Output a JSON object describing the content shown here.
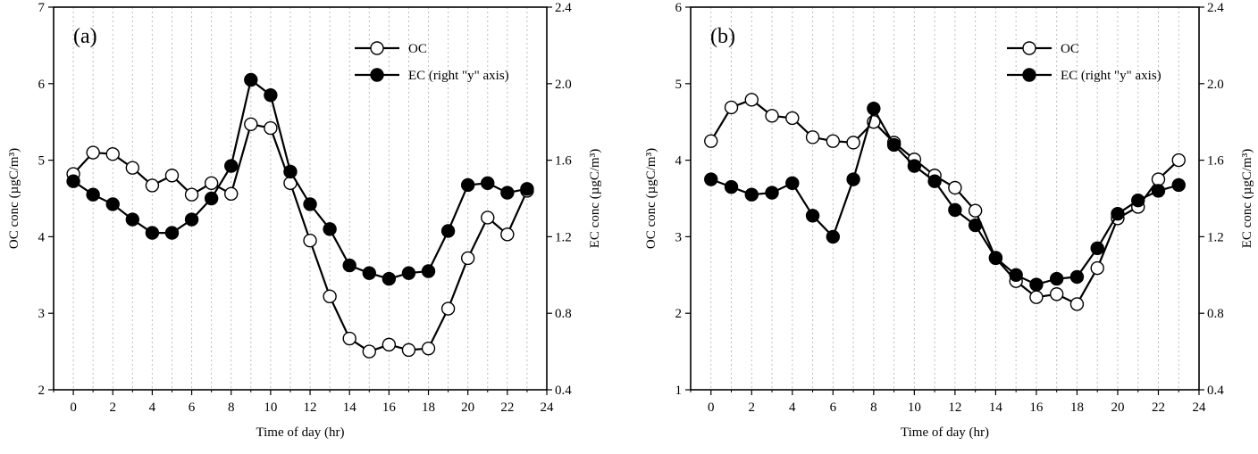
{
  "chart_data": [
    {
      "type": "line",
      "panel_label": "(a)",
      "xlabel": "Time of day (hr)",
      "ylabel_left": "OC conc (µgC/m³)",
      "ylabel_right": "EC conc (µgC/m³)",
      "xlim": [
        -1,
        24
      ],
      "xticks": [
        0,
        2,
        4,
        6,
        8,
        10,
        12,
        14,
        16,
        18,
        20,
        22,
        24
      ],
      "ylim_left": [
        2,
        7
      ],
      "yticks_left": [
        2,
        3,
        4,
        5,
        6,
        7
      ],
      "ylim_right": [
        0.4,
        2.4
      ],
      "yticks_right": [
        "0.4",
        "0.8",
        "1.2",
        "1.6",
        "2.0",
        "2.4"
      ],
      "grid": "vertical dotted",
      "legend_position": "top-right",
      "series": [
        {
          "name": "OC",
          "marker": "open-circle",
          "axis": "left",
          "x": [
            0,
            1,
            2,
            3,
            4,
            5,
            6,
            7,
            8,
            9,
            10,
            11,
            12,
            13,
            14,
            15,
            16,
            17,
            18,
            19,
            20,
            21,
            22,
            23
          ],
          "values": [
            4.82,
            5.1,
            5.08,
            4.9,
            4.67,
            4.8,
            4.55,
            4.7,
            4.56,
            5.47,
            5.42,
            4.7,
            3.95,
            3.22,
            2.67,
            2.5,
            2.59,
            2.52,
            2.54,
            3.06,
            3.72,
            4.25,
            4.03,
            4.6
          ]
        },
        {
          "name": "EC (right \"y\" axis)",
          "marker": "filled-circle",
          "axis": "right",
          "x": [
            0,
            1,
            2,
            3,
            4,
            5,
            6,
            7,
            8,
            9,
            10,
            11,
            12,
            13,
            14,
            15,
            16,
            17,
            18,
            19,
            20,
            21,
            22,
            23
          ],
          "values": [
            1.49,
            1.42,
            1.37,
            1.29,
            1.22,
            1.22,
            1.29,
            1.4,
            1.57,
            2.02,
            1.94,
            1.54,
            1.37,
            1.24,
            1.05,
            1.01,
            0.98,
            1.01,
            1.02,
            1.23,
            1.47,
            1.48,
            1.43,
            1.45
          ]
        }
      ]
    },
    {
      "type": "line",
      "panel_label": "(b)",
      "xlabel": "Time of day (hr)",
      "ylabel_left": "OC conc (µgC/m³)",
      "ylabel_right": "EC conc (µgC/m³)",
      "xlim": [
        -1,
        24
      ],
      "xticks": [
        0,
        2,
        4,
        6,
        8,
        10,
        12,
        14,
        16,
        18,
        20,
        22,
        24
      ],
      "ylim_left": [
        1,
        6
      ],
      "yticks_left": [
        1,
        2,
        3,
        4,
        5,
        6
      ],
      "ylim_right": [
        0.4,
        2.4
      ],
      "yticks_right": [
        "0.4",
        "0.8",
        "1.2",
        "1.6",
        "2.0",
        "2.4"
      ],
      "grid": "vertical dotted",
      "legend_position": "top-right",
      "series": [
        {
          "name": "OC",
          "marker": "open-circle",
          "axis": "left",
          "x": [
            0,
            1,
            2,
            3,
            4,
            5,
            6,
            7,
            8,
            9,
            10,
            11,
            12,
            13,
            14,
            15,
            16,
            17,
            18,
            19,
            20,
            21,
            22,
            23
          ],
          "values": [
            4.25,
            4.69,
            4.79,
            4.58,
            4.55,
            4.3,
            4.25,
            4.23,
            4.5,
            4.23,
            4.01,
            3.8,
            3.64,
            3.34,
            2.72,
            2.42,
            2.21,
            2.25,
            2.12,
            2.59,
            3.24,
            3.39,
            3.75,
            4.0
          ]
        },
        {
          "name": "EC (right \"y\" axis)",
          "marker": "filled-circle",
          "axis": "right",
          "x": [
            0,
            1,
            2,
            3,
            4,
            5,
            6,
            7,
            8,
            9,
            10,
            11,
            12,
            13,
            14,
            15,
            16,
            17,
            18,
            19,
            20,
            21,
            22,
            23
          ],
          "values": [
            1.5,
            1.46,
            1.42,
            1.43,
            1.48,
            1.31,
            1.2,
            1.5,
            1.87,
            1.68,
            1.57,
            1.49,
            1.34,
            1.26,
            1.09,
            1.0,
            0.95,
            0.98,
            0.99,
            1.14,
            1.32,
            1.39,
            1.44,
            1.47
          ]
        }
      ]
    }
  ]
}
